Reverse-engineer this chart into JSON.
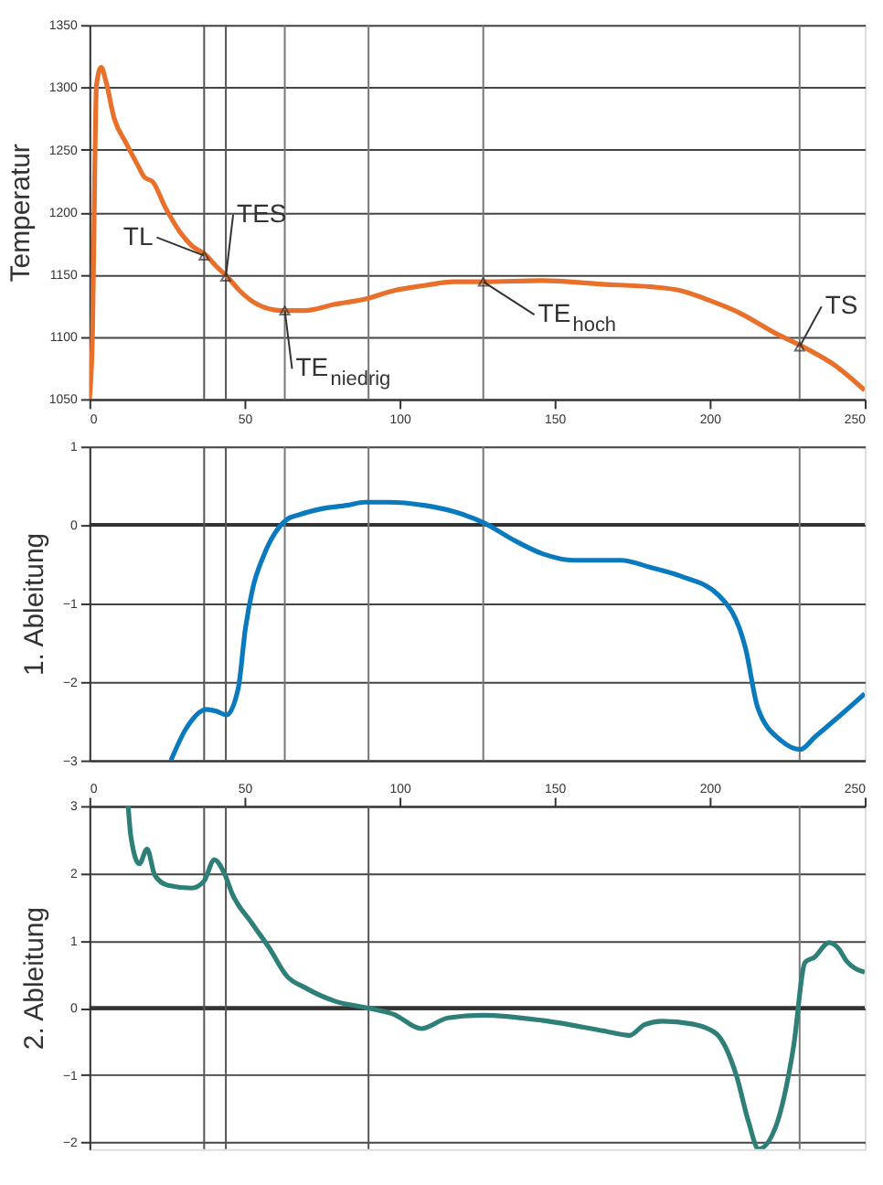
{
  "chart_data": [
    {
      "type": "line",
      "ylabel": "Temperatur",
      "xlim": [
        0,
        250
      ],
      "xticks": [
        0,
        50,
        100,
        150,
        200,
        250
      ],
      "ylim": [
        1050,
        1350
      ],
      "yticks": [
        1050,
        1100,
        1150,
        1200,
        1250,
        1300,
        1350
      ],
      "grid": "y",
      "series": [
        {
          "color": "#e8702a",
          "x": [
            0,
            1,
            1.5,
            2.3,
            3.8,
            5.2,
            8,
            11.9,
            15.7,
            17.7,
            20.5,
            24.4,
            29.2,
            33,
            37.8,
            40.7,
            44.5,
            48.4,
            54.1,
            61.8,
            69.5,
            79.1,
            88.7,
            98.3,
            108,
            117.5,
            127,
            146,
            165.5,
            181,
            190.5,
            200,
            209.7,
            221,
            230.8,
            240.4,
            250
          ],
          "values": [
            1050,
            1101,
            1190,
            1302,
            1316,
            1306,
            1275,
            1255,
            1237,
            1228,
            1224,
            1204,
            1184,
            1173,
            1165,
            1157,
            1148,
            1137,
            1126,
            1121,
            1121,
            1126,
            1130,
            1137,
            1141,
            1144,
            1144,
            1145,
            1142,
            1140,
            1137,
            1129,
            1119,
            1103,
            1091,
            1077,
            1057
          ]
        }
      ],
      "ref_lines": [
        {
          "axis": "x",
          "value": 37,
          "color": "#555555"
        },
        {
          "axis": "x",
          "value": 44,
          "color": "#555555"
        },
        {
          "axis": "x",
          "value": 63,
          "color": "#777777"
        },
        {
          "axis": "x",
          "value": 90,
          "color": "#777777"
        },
        {
          "axis": "x",
          "value": 127,
          "color": "#777777"
        },
        {
          "axis": "x",
          "value": 229,
          "color": "#777777"
        }
      ],
      "annotations": [
        {
          "text": "TL",
          "x": 37,
          "y": 1165
        },
        {
          "text": "TES",
          "x": 44,
          "y": 1148
        },
        {
          "text": "TE$_{niedrig}$",
          "x": 63,
          "y": 1121
        },
        {
          "text": "TE$_{hoch}$",
          "x": 127,
          "y": 1144
        },
        {
          "text": "TS",
          "x": 229,
          "y": 1092
        }
      ]
    },
    {
      "type": "line",
      "ylabel": "1. Ableitung",
      "xlim": [
        0,
        250
      ],
      "ylim": [
        -3,
        1
      ],
      "yticks": [
        -3,
        -2,
        -1,
        0,
        1
      ],
      "grid": "y",
      "tick_labels": "y",
      "series": [
        {
          "color": "#0a7abf",
          "x": [
            26.3,
            31.1,
            37.8,
            40.7,
            44.2,
            48,
            50.3,
            52.6,
            56.1,
            59.9,
            63.7,
            67.6,
            75.3,
            83,
            88.7,
            96.4,
            107.9,
            117.5,
            127.1,
            136.7,
            146.3,
            156,
            171.3,
            180.9,
            190.5,
            203,
            211.6,
            215.5,
            223.1,
            229.3,
            233.7,
            242.3,
            250
          ],
          "values": [
            -3.0,
            -2.6,
            -2.35,
            -2.37,
            -2.42,
            -2.08,
            -1.32,
            -0.82,
            -0.4,
            -0.1,
            0.07,
            0.13,
            0.21,
            0.25,
            0.29,
            0.29,
            0.25,
            0.17,
            0.03,
            -0.19,
            -0.37,
            -0.45,
            -0.45,
            -0.54,
            -0.65,
            -0.9,
            -1.58,
            -2.33,
            -2.75,
            -2.86,
            -2.71,
            -2.42,
            -2.15
          ]
        }
      ],
      "ref_lines": [
        {
          "axis": "y",
          "value": 0,
          "color": "#333333"
        },
        {
          "axis": "x",
          "value": 37,
          "color": "#555555"
        },
        {
          "axis": "x",
          "value": 44,
          "color": "#555555"
        },
        {
          "axis": "x",
          "value": 63,
          "color": "#777777"
        },
        {
          "axis": "x",
          "value": 90,
          "color": "#777777"
        },
        {
          "axis": "x",
          "value": 127,
          "color": "#777777"
        },
        {
          "axis": "x",
          "value": 229,
          "color": "#777777"
        }
      ]
    },
    {
      "type": "line",
      "ylabel": "2. Ableitung",
      "xlim": [
        0,
        250
      ],
      "xticks": [
        0,
        50,
        100,
        150,
        200,
        250
      ],
      "ylim": [
        -2.1,
        3
      ],
      "yticks": [
        -2,
        -1,
        0,
        1,
        2,
        3
      ],
      "grid": "y",
      "series": [
        {
          "color": "#2e7f78",
          "x": [
            12.5,
            13.4,
            16.1,
            18.6,
            21.1,
            25.3,
            33,
            36.9,
            40.3,
            43.6,
            46.1,
            52.2,
            58,
            63.7,
            69.5,
            79.1,
            89.5,
            98.3,
            107,
            115.6,
            127.1,
            146.3,
            165.5,
            174.2,
            179,
            184.7,
            194.3,
            202,
            208.7,
            212.5,
            215.8,
            221.2,
            227,
            230.8,
            233.7,
            238.5,
            241.4,
            244.2,
            250
          ],
          "values": [
            3.0,
            2.54,
            2.14,
            2.36,
            1.97,
            1.82,
            1.78,
            1.88,
            2.2,
            1.99,
            1.69,
            1.27,
            0.89,
            0.47,
            0.3,
            0.1,
            0.0,
            -0.1,
            -0.31,
            -0.15,
            -0.11,
            -0.19,
            -0.34,
            -0.41,
            -0.25,
            -0.2,
            -0.24,
            -0.38,
            -1.02,
            -1.69,
            -2.1,
            -1.78,
            -0.59,
            0.68,
            0.75,
            0.97,
            0.89,
            0.69,
            0.53
          ]
        }
      ],
      "ref_lines": [
        {
          "axis": "y",
          "value": 0,
          "color": "#333333"
        },
        {
          "axis": "x",
          "value": 37,
          "color": "#555555"
        },
        {
          "axis": "x",
          "value": 44,
          "color": "#555555"
        },
        {
          "axis": "x",
          "value": 90,
          "color": "#555555"
        },
        {
          "axis": "x",
          "value": 229,
          "color": "#777777"
        }
      ]
    }
  ]
}
